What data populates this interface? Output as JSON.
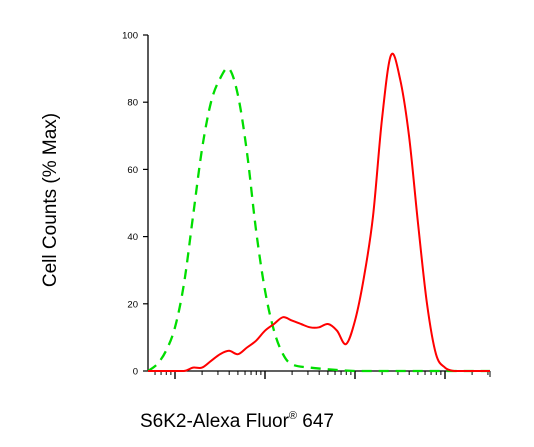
{
  "chart_data": {
    "type": "line",
    "title": "",
    "ylabel": "Cell Counts (% Max)",
    "xlabel_main": "S6K2-Alexa Fluor",
    "xlabel_sup": "®",
    "xlabel_tail": " 647",
    "xscale": "log",
    "xlim": [
      -0.3,
      3.5
    ],
    "ylim": [
      0,
      100
    ],
    "yticks": [
      0,
      20,
      40,
      60,
      80,
      100
    ],
    "ytick_labels": [
      "0",
      "20",
      "40",
      "60",
      "80",
      "100"
    ],
    "xtick_decades": [
      0,
      1,
      2,
      3
    ],
    "grid": false,
    "legend": false,
    "series": [
      {
        "color": "#00dd00",
        "style": "dashed",
        "x": [
          -0.3,
          -0.2,
          -0.1,
          0.0,
          0.1,
          0.2,
          0.3,
          0.4,
          0.5,
          0.6,
          0.7,
          0.8,
          0.9,
          1.0,
          1.1,
          1.2,
          1.3,
          1.5,
          2.0,
          2.5,
          3.0,
          3.5
        ],
        "y": [
          0,
          2,
          6,
          13,
          26,
          46,
          66,
          80,
          87,
          90,
          82,
          65,
          42,
          24,
          12,
          5,
          2,
          1,
          0,
          0,
          0,
          0
        ]
      },
      {
        "color": "#ff0000",
        "style": "solid",
        "x": [
          -0.3,
          -0.1,
          0.1,
          0.2,
          0.3,
          0.4,
          0.5,
          0.6,
          0.7,
          0.8,
          0.9,
          1.0,
          1.1,
          1.2,
          1.3,
          1.4,
          1.5,
          1.6,
          1.7,
          1.8,
          1.9,
          2.0,
          2.1,
          2.2,
          2.3,
          2.4,
          2.5,
          2.6,
          2.7,
          2.8,
          2.9,
          3.0,
          3.1,
          3.2,
          3.3,
          3.5
        ],
        "y": [
          0,
          0,
          0,
          1,
          1,
          3,
          5,
          6,
          5,
          7,
          9,
          12,
          14,
          16,
          15,
          14,
          13,
          13,
          14,
          12,
          8,
          15,
          28,
          46,
          75,
          94,
          87,
          70,
          44,
          20,
          5,
          1,
          0,
          0,
          0,
          0
        ]
      }
    ]
  }
}
